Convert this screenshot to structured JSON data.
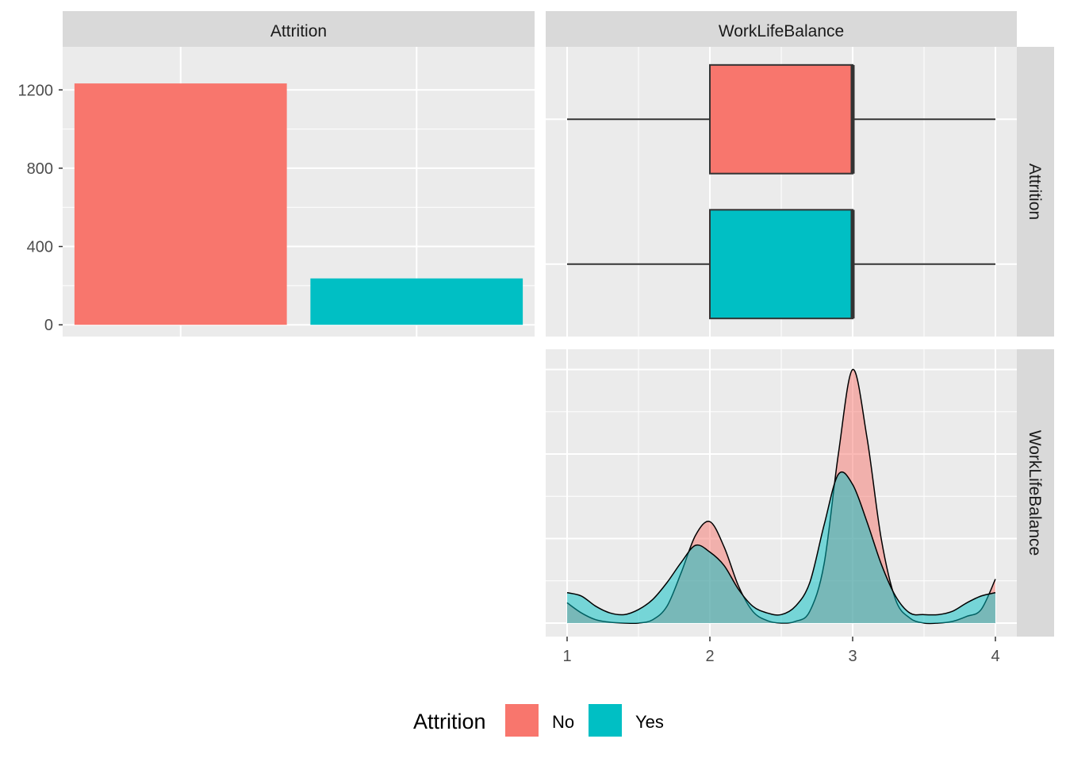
{
  "chart_data": [
    {
      "type": "bar",
      "strip_top": "Attrition",
      "categories": [
        "No",
        "Yes"
      ],
      "values": [
        1233,
        237
      ],
      "ylim": [
        -60,
        1420
      ],
      "yticks": [
        0,
        400,
        800,
        1200
      ],
      "grid": true
    },
    {
      "type": "box",
      "strip_top": "WorkLifeBalance",
      "strip_right": "Attrition",
      "categories": [
        "No",
        "Yes"
      ],
      "boxes": [
        {
          "group": "No",
          "min": 1,
          "q1": 2,
          "median": 3,
          "q3": 3,
          "max": 4
        },
        {
          "group": "Yes",
          "min": 1,
          "q1": 2,
          "median": 3,
          "q3": 3,
          "max": 4
        }
      ],
      "xlim": [
        0.85,
        4.15
      ],
      "grid": true
    },
    {
      "type": "area",
      "strip_right": "WorkLifeBalance",
      "x_ticks": [
        1,
        2,
        3,
        4
      ],
      "xlim": [
        0.85,
        4.15
      ],
      "ylim": [
        -0.08,
        1.62
      ],
      "grid": true,
      "series": [
        {
          "name": "No",
          "x": [
            1,
            1.1,
            1.2,
            1.3,
            1.4,
            1.5,
            1.6,
            1.7,
            1.8,
            1.9,
            2,
            2.1,
            2.2,
            2.3,
            2.4,
            2.5,
            2.6,
            2.7,
            2.8,
            2.9,
            3,
            3.1,
            3.2,
            3.3,
            3.4,
            3.5,
            3.6,
            3.7,
            3.8,
            3.9,
            4
          ],
          "y": [
            0.12,
            0.06,
            0.02,
            0.005,
            0,
            0,
            0.02,
            0.1,
            0.3,
            0.52,
            0.6,
            0.45,
            0.22,
            0.07,
            0.015,
            0,
            0.01,
            0.07,
            0.35,
            1.0,
            1.5,
            1.1,
            0.5,
            0.14,
            0.03,
            0,
            0,
            0.01,
            0.04,
            0.08,
            0.26
          ]
        },
        {
          "name": "Yes",
          "x": [
            1,
            1.1,
            1.2,
            1.3,
            1.4,
            1.5,
            1.6,
            1.7,
            1.8,
            1.9,
            2,
            2.1,
            2.2,
            2.3,
            2.4,
            2.5,
            2.6,
            2.7,
            2.8,
            2.9,
            3,
            3.1,
            3.2,
            3.3,
            3.4,
            3.5,
            3.6,
            3.7,
            3.8,
            3.9,
            4
          ],
          "y": [
            0.18,
            0.16,
            0.1,
            0.06,
            0.05,
            0.08,
            0.14,
            0.24,
            0.36,
            0.46,
            0.42,
            0.34,
            0.2,
            0.1,
            0.06,
            0.05,
            0.1,
            0.24,
            0.58,
            0.88,
            0.82,
            0.6,
            0.35,
            0.16,
            0.06,
            0.05,
            0.05,
            0.07,
            0.12,
            0.16,
            0.18
          ]
        }
      ]
    }
  ],
  "legend": {
    "title": "Attrition",
    "items": [
      {
        "label": "No",
        "color": "#F8766D"
      },
      {
        "label": "Yes",
        "color": "#00BFC4"
      }
    ]
  }
}
